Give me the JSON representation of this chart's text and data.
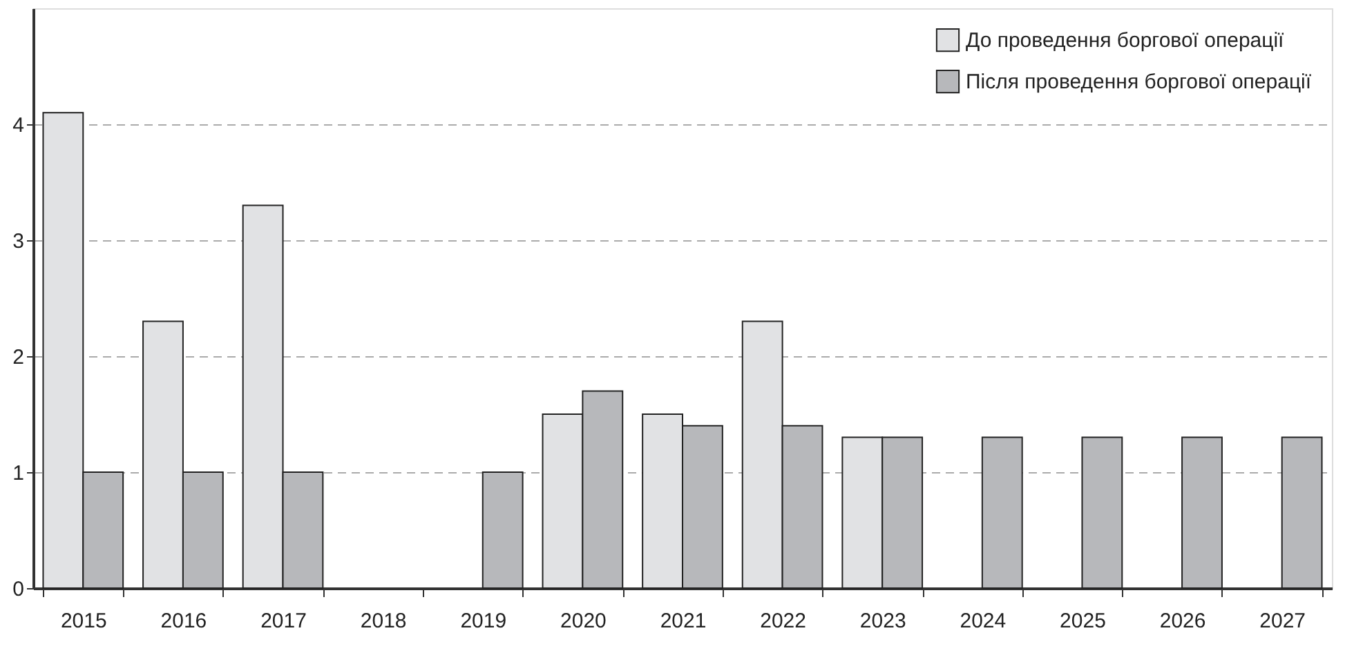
{
  "chart_data": {
    "type": "bar",
    "categories": [
      "2015",
      "2016",
      "2017",
      "2018",
      "2019",
      "2020",
      "2021",
      "2022",
      "2023",
      "2024",
      "2025",
      "2026",
      "2027"
    ],
    "series": [
      {
        "name": "До проведення боргової операції",
        "color": "#e1e2e4",
        "values": [
          4.1,
          2.3,
          3.3,
          null,
          null,
          1.5,
          1.5,
          2.3,
          1.3,
          null,
          null,
          null,
          null
        ]
      },
      {
        "name": "Після проведення боргової операції",
        "color": "#b7b8bb",
        "values": [
          1.0,
          1.0,
          1.0,
          null,
          1.0,
          1.7,
          1.4,
          1.4,
          1.3,
          1.3,
          1.3,
          1.3,
          1.3
        ]
      }
    ],
    "ylim": [
      0,
      5
    ],
    "yticks": [
      0,
      1,
      2,
      3,
      4
    ],
    "grid": "y",
    "legend": "top right"
  }
}
